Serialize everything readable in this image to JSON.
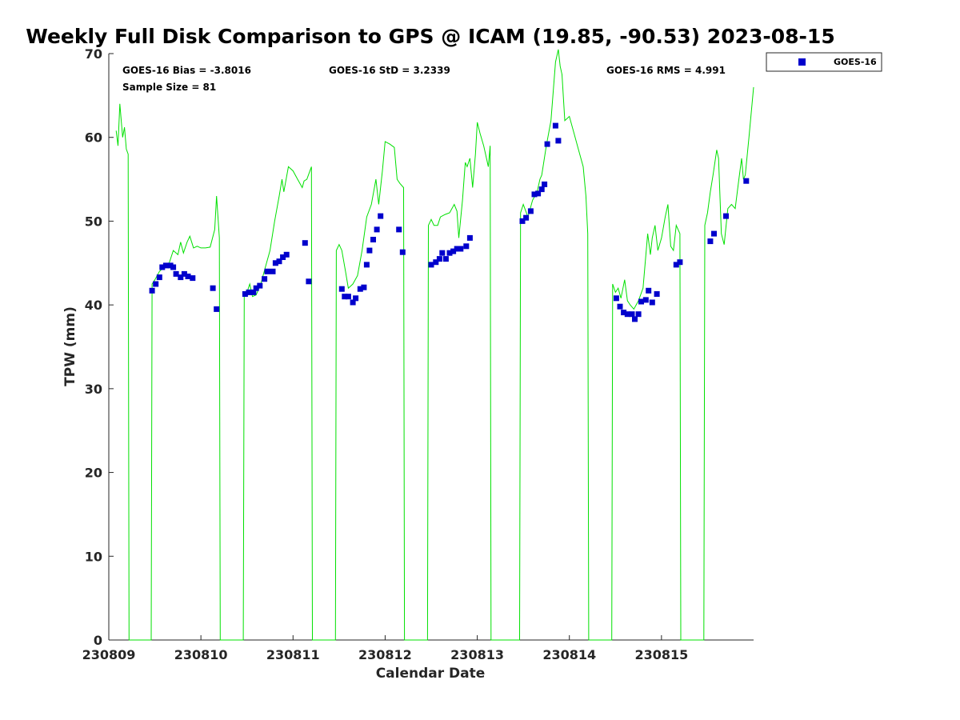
{
  "chart_data": {
    "type": "scatter",
    "title": "Weekly Full Disk Comparison to GPS @ ICAM (19.85, -90.53) 2023-08-15",
    "xlabel": "Calendar Date",
    "ylabel": "TPW (mm)",
    "ylim": [
      0,
      70
    ],
    "xlim": [
      230809,
      230816
    ],
    "x_ticks": [
      230809,
      230810,
      230811,
      230812,
      230813,
      230814,
      230815
    ],
    "x_tick_labels": [
      "230809",
      "230810",
      "230811",
      "230812",
      "230813",
      "230814",
      "230815"
    ],
    "y_ticks": [
      0,
      10,
      20,
      30,
      40,
      50,
      60,
      70
    ],
    "grid": false,
    "legend": {
      "position": "top-right",
      "entries": [
        "GOES-16"
      ]
    },
    "stats": {
      "bias": "GOES-16 Bias = -3.8016",
      "sample_size": "Sample Size = 81",
      "std": "GOES-16 StD = 3.2339",
      "rms": "GOES-16 RMS = 4.991"
    },
    "colors": {
      "gps_line": "#00e000",
      "goes_marker": "#0000cc"
    },
    "gps_line": [
      [
        230809.08,
        60.8
      ],
      [
        230809.1,
        59.0
      ],
      [
        230809.12,
        64.0
      ],
      [
        230809.15,
        60.0
      ],
      [
        230809.17,
        61.2
      ],
      [
        230809.19,
        58.6
      ],
      [
        230809.21,
        58.0
      ],
      [
        230809.22,
        0
      ],
      [
        230809.46,
        0
      ],
      [
        230809.47,
        42.5
      ],
      [
        230809.5,
        43.0
      ],
      [
        230809.55,
        44.0
      ],
      [
        230809.6,
        44.5
      ],
      [
        230809.65,
        44.8
      ],
      [
        230809.7,
        46.5
      ],
      [
        230809.75,
        46.0
      ],
      [
        230809.78,
        47.5
      ],
      [
        230809.81,
        46.2
      ],
      [
        230809.85,
        47.5
      ],
      [
        230809.88,
        48.2
      ],
      [
        230809.92,
        46.8
      ],
      [
        230809.96,
        47.0
      ],
      [
        230810.0,
        46.8
      ],
      [
        230810.05,
        46.8
      ],
      [
        230810.1,
        46.9
      ],
      [
        230810.15,
        49.0
      ],
      [
        230810.17,
        53.0
      ],
      [
        230810.2,
        48.0
      ],
      [
        230810.21,
        0
      ],
      [
        230810.46,
        0
      ],
      [
        230810.47,
        41.0
      ],
      [
        230810.5,
        41.5
      ],
      [
        230810.53,
        42.5
      ],
      [
        230810.56,
        41.0
      ],
      [
        230810.6,
        41.2
      ],
      [
        230810.65,
        42.5
      ],
      [
        230810.7,
        44.5
      ],
      [
        230810.75,
        46.5
      ],
      [
        230810.8,
        50.0
      ],
      [
        230810.85,
        53.0
      ],
      [
        230810.88,
        55.0
      ],
      [
        230810.9,
        53.5
      ],
      [
        230810.95,
        56.5
      ],
      [
        230811.0,
        56.0
      ],
      [
        230811.05,
        55.0
      ],
      [
        230811.1,
        54.0
      ],
      [
        230811.12,
        54.8
      ],
      [
        230811.15,
        55.0
      ],
      [
        230811.2,
        56.5
      ],
      [
        230811.21,
        0
      ],
      [
        230811.46,
        0
      ],
      [
        230811.47,
        46.5
      ],
      [
        230811.5,
        47.2
      ],
      [
        230811.53,
        46.5
      ],
      [
        230811.57,
        44.0
      ],
      [
        230811.6,
        42.0
      ],
      [
        230811.65,
        42.5
      ],
      [
        230811.7,
        43.5
      ],
      [
        230811.75,
        46.5
      ],
      [
        230811.8,
        50.5
      ],
      [
        230811.85,
        52.0
      ],
      [
        230811.9,
        55.0
      ],
      [
        230811.93,
        52.0
      ],
      [
        230811.97,
        56.0
      ],
      [
        230812.0,
        59.5
      ],
      [
        230812.05,
        59.2
      ],
      [
        230812.1,
        58.8
      ],
      [
        230812.13,
        55.0
      ],
      [
        230812.16,
        54.5
      ],
      [
        230812.2,
        54.0
      ],
      [
        230812.21,
        0
      ],
      [
        230812.46,
        0
      ],
      [
        230812.47,
        49.5
      ],
      [
        230812.5,
        50.2
      ],
      [
        230812.53,
        49.5
      ],
      [
        230812.57,
        49.5
      ],
      [
        230812.6,
        50.5
      ],
      [
        230812.65,
        50.8
      ],
      [
        230812.7,
        51.0
      ],
      [
        230812.75,
        52.0
      ],
      [
        230812.78,
        51.2
      ],
      [
        230812.8,
        48.0
      ],
      [
        230812.84,
        52.5
      ],
      [
        230812.87,
        57.0
      ],
      [
        230812.89,
        56.5
      ],
      [
        230812.92,
        57.5
      ],
      [
        230812.95,
        54.0
      ],
      [
        230812.98,
        58.0
      ],
      [
        230813.0,
        61.8
      ],
      [
        230813.03,
        60.5
      ],
      [
        230813.07,
        59.0
      ],
      [
        230813.1,
        57.5
      ],
      [
        230813.12,
        56.5
      ],
      [
        230813.14,
        59.0
      ],
      [
        230813.15,
        0
      ],
      [
        230813.46,
        0
      ],
      [
        230813.47,
        51.0
      ],
      [
        230813.5,
        52.0
      ],
      [
        230813.55,
        50.5
      ],
      [
        230813.6,
        52.5
      ],
      [
        230813.65,
        53.5
      ],
      [
        230813.68,
        55.0
      ],
      [
        230813.7,
        55.5
      ],
      [
        230813.75,
        59.0
      ],
      [
        230813.8,
        62.0
      ],
      [
        230813.85,
        69.0
      ],
      [
        230813.88,
        70.5
      ],
      [
        230813.9,
        68.5
      ],
      [
        230813.92,
        67.5
      ],
      [
        230813.95,
        62.0
      ],
      [
        230814.0,
        62.5
      ],
      [
        230814.05,
        60.5
      ],
      [
        230814.1,
        58.5
      ],
      [
        230814.15,
        56.5
      ],
      [
        230814.18,
        53.0
      ],
      [
        230814.2,
        48.5
      ],
      [
        230814.21,
        0
      ],
      [
        230814.46,
        0
      ],
      [
        230814.47,
        42.5
      ],
      [
        230814.5,
        41.5
      ],
      [
        230814.53,
        42.0
      ],
      [
        230814.56,
        40.8
      ],
      [
        230814.6,
        43.0
      ],
      [
        230814.63,
        40.5
      ],
      [
        230814.66,
        40.0
      ],
      [
        230814.7,
        39.5
      ],
      [
        230814.75,
        40.5
      ],
      [
        230814.8,
        42.0
      ],
      [
        230814.85,
        48.5
      ],
      [
        230814.88,
        46.0
      ],
      [
        230814.9,
        48.0
      ],
      [
        230814.93,
        49.5
      ],
      [
        230814.96,
        46.5
      ],
      [
        230815.0,
        48.0
      ],
      [
        230815.04,
        50.5
      ],
      [
        230815.07,
        52.0
      ],
      [
        230815.1,
        47.0
      ],
      [
        230815.13,
        46.5
      ],
      [
        230815.16,
        49.5
      ],
      [
        230815.2,
        48.5
      ],
      [
        230815.21,
        0
      ],
      [
        230815.46,
        0
      ],
      [
        230815.47,
        49.5
      ],
      [
        230815.5,
        51.0
      ],
      [
        230815.53,
        53.5
      ],
      [
        230815.56,
        55.5
      ],
      [
        230815.6,
        58.5
      ],
      [
        230815.62,
        57.5
      ],
      [
        230815.65,
        48.5
      ],
      [
        230815.68,
        47.2
      ],
      [
        230815.72,
        51.5
      ],
      [
        230815.76,
        52.0
      ],
      [
        230815.8,
        51.5
      ],
      [
        230815.84,
        55.0
      ],
      [
        230815.87,
        57.5
      ],
      [
        230815.89,
        55.0
      ],
      [
        230815.91,
        55.5
      ],
      [
        230815.95,
        60.0
      ],
      [
        230816.0,
        66.0
      ]
    ],
    "goes_points": [
      [
        230809.47,
        41.7
      ],
      [
        230809.51,
        42.5
      ],
      [
        230809.55,
        43.3
      ],
      [
        230809.58,
        44.5
      ],
      [
        230809.62,
        44.7
      ],
      [
        230809.67,
        44.7
      ],
      [
        230809.7,
        44.5
      ],
      [
        230809.73,
        43.7
      ],
      [
        230809.78,
        43.3
      ],
      [
        230809.82,
        43.7
      ],
      [
        230809.86,
        43.4
      ],
      [
        230809.91,
        43.2
      ],
      [
        230810.13,
        42.0
      ],
      [
        230810.17,
        39.5
      ],
      [
        230810.48,
        41.3
      ],
      [
        230810.52,
        41.5
      ],
      [
        230810.57,
        41.5
      ],
      [
        230810.6,
        42.0
      ],
      [
        230810.64,
        42.3
      ],
      [
        230810.69,
        43.1
      ],
      [
        230810.72,
        44.0
      ],
      [
        230810.78,
        44.0
      ],
      [
        230810.81,
        45.0
      ],
      [
        230810.85,
        45.2
      ],
      [
        230810.89,
        45.7
      ],
      [
        230810.93,
        46.0
      ],
      [
        230811.13,
        47.4
      ],
      [
        230811.17,
        42.8
      ],
      [
        230811.53,
        41.9
      ],
      [
        230811.56,
        41.0
      ],
      [
        230811.6,
        41.0
      ],
      [
        230811.65,
        40.3
      ],
      [
        230811.68,
        40.8
      ],
      [
        230811.73,
        41.9
      ],
      [
        230811.77,
        42.1
      ],
      [
        230811.8,
        44.8
      ],
      [
        230811.83,
        46.5
      ],
      [
        230811.87,
        47.8
      ],
      [
        230811.91,
        49.0
      ],
      [
        230811.95,
        50.6
      ],
      [
        230812.15,
        49.0
      ],
      [
        230812.19,
        46.3
      ],
      [
        230812.5,
        44.8
      ],
      [
        230812.55,
        45.1
      ],
      [
        230812.59,
        45.5
      ],
      [
        230812.62,
        46.2
      ],
      [
        230812.66,
        45.5
      ],
      [
        230812.7,
        46.2
      ],
      [
        230812.74,
        46.4
      ],
      [
        230812.78,
        46.7
      ],
      [
        230812.82,
        46.7
      ],
      [
        230812.88,
        47.0
      ],
      [
        230812.92,
        48.0
      ],
      [
        230813.49,
        50.0
      ],
      [
        230813.53,
        50.4
      ],
      [
        230813.58,
        51.2
      ],
      [
        230813.62,
        53.2
      ],
      [
        230813.66,
        53.3
      ],
      [
        230813.7,
        53.8
      ],
      [
        230813.73,
        54.4
      ],
      [
        230813.76,
        59.2
      ],
      [
        230813.85,
        61.4
      ],
      [
        230813.88,
        59.6
      ],
      [
        230814.51,
        40.8
      ],
      [
        230814.55,
        39.8
      ],
      [
        230814.59,
        39.1
      ],
      [
        230814.63,
        38.9
      ],
      [
        230814.68,
        38.9
      ],
      [
        230814.71,
        38.3
      ],
      [
        230814.75,
        38.9
      ],
      [
        230814.78,
        40.4
      ],
      [
        230814.83,
        40.6
      ],
      [
        230814.86,
        41.7
      ],
      [
        230814.9,
        40.3
      ],
      [
        230814.95,
        41.3
      ],
      [
        230815.16,
        44.8
      ],
      [
        230815.2,
        45.1
      ],
      [
        230815.53,
        47.6
      ],
      [
        230815.57,
        48.5
      ],
      [
        230815.7,
        50.6
      ],
      [
        230815.92,
        54.8
      ]
    ]
  }
}
